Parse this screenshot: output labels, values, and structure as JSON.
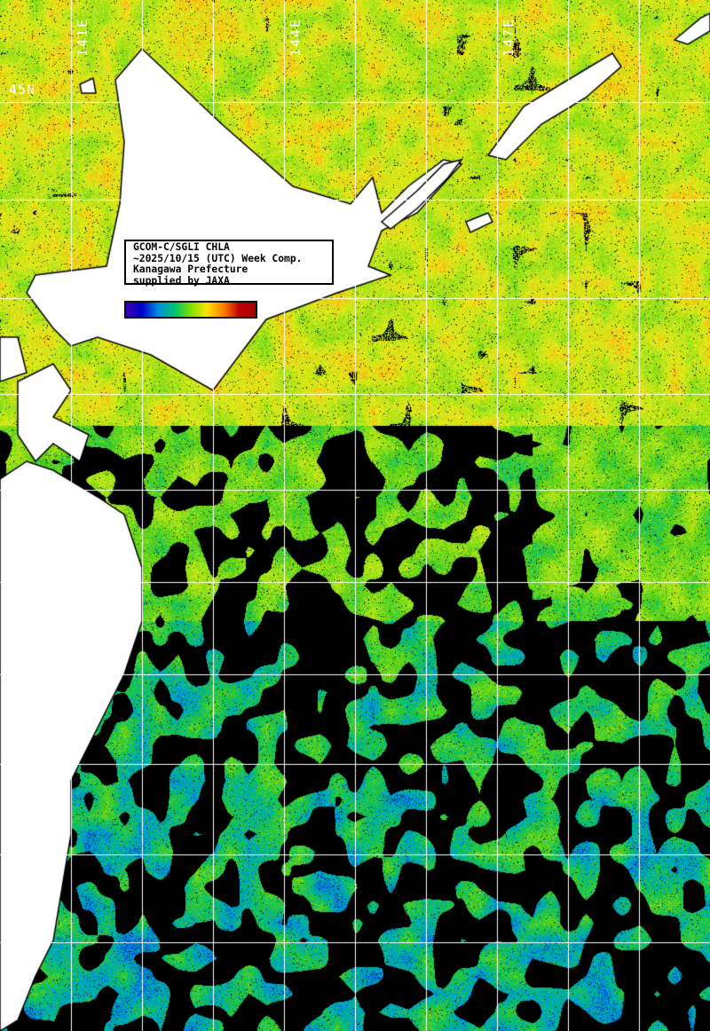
{
  "map": {
    "legend_lines": [
      "GCOM-C/SGLI CHLA",
      "~2025/10/15 (UTC) Week Comp.",
      "Kanagawa Prefecture",
      "supplied by JAXA"
    ],
    "longitude_labels": [
      "141E",
      "144E",
      "147E"
    ],
    "latitude_labels": [
      "45N"
    ],
    "colorbar_colors": [
      "#3a00b0",
      "#0000c8",
      "#0090e0",
      "#00c070",
      "#80e000",
      "#ffe000",
      "#ff8000",
      "#c00000",
      "#a00000"
    ],
    "land_color": "#ffffff",
    "no_data_color": "#000000",
    "grid_color": "#ffffff"
  }
}
